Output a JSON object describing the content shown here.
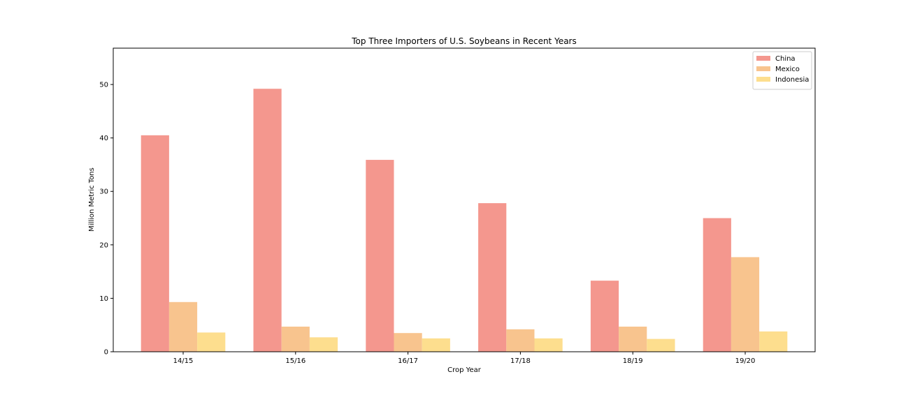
{
  "chart_data": {
    "type": "bar",
    "title": "Top Three Importers of U.S. Soybeans in Recent Years",
    "xlabel": "Crop Year",
    "ylabel": "Million Metric Tons",
    "categories": [
      "14/15",
      "15/16",
      "16/17",
      "17/18",
      "18/19",
      "19/20"
    ],
    "series": [
      {
        "name": "China",
        "color": "#f4978e",
        "values": [
          40.5,
          49.2,
          35.9,
          27.8,
          13.3,
          25.0
        ]
      },
      {
        "name": "Mexico",
        "color": "#f8c48e",
        "values": [
          9.3,
          4.7,
          3.5,
          4.2,
          4.7,
          17.7
        ]
      },
      {
        "name": "Indonesia",
        "color": "#fdde8e",
        "values": [
          3.6,
          2.7,
          2.5,
          2.5,
          2.4,
          3.8
        ]
      }
    ],
    "ylim": [
      0,
      56.8
    ],
    "yticks": [
      0,
      10,
      20,
      30,
      40,
      50
    ],
    "grid": false,
    "legend_position": "top-right"
  }
}
